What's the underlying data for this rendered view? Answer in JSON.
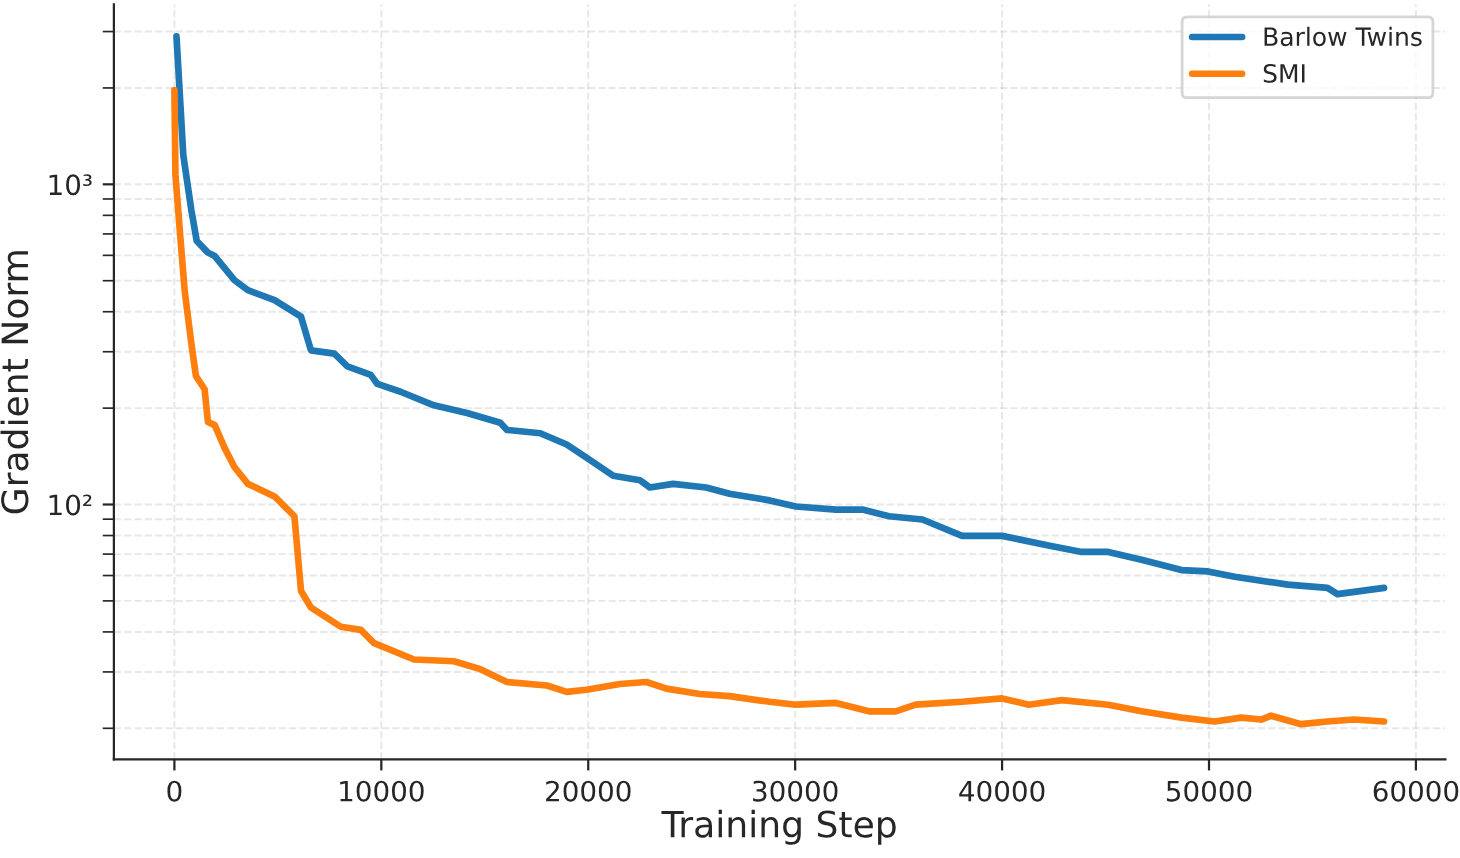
{
  "chart_data": {
    "type": "line",
    "xlabel": "Training Step",
    "ylabel": "Gradient Norm",
    "log": "y",
    "grid": true,
    "legend": "top right",
    "line_style": "solid",
    "xlim": [
      -2925,
      61425
    ],
    "ylim": [
      16,
      3650
    ],
    "xticks": [
      0,
      10000,
      20000,
      30000,
      40000,
      50000,
      60000
    ],
    "yticks": [
      {
        "value": 100,
        "label": "10²"
      },
      {
        "value": 1000,
        "label": "10³"
      }
    ],
    "series": [
      {
        "name": "Barlow Twins",
        "color": "#1f77b4",
        "x": [
          100,
          430,
          820,
          1080,
          1620,
          1950,
          2900,
          3550,
          4840,
          6120,
          6600,
          7730,
          8360,
          9490,
          9810,
          10930,
          12540,
          14140,
          15750,
          16070,
          17680,
          18960,
          19920,
          21210,
          22500,
          22980,
          24100,
          25700,
          26830,
          28760,
          30040,
          31970,
          33250,
          34540,
          36150,
          38070,
          40000,
          42240,
          43850,
          45130,
          46740,
          48670,
          49950,
          51240,
          53810,
          55730,
          56210,
          58460
        ],
        "values": [
          2900,
          1233,
          830,
          665,
          612,
          597,
          502,
          467,
          435,
          386,
          303,
          296,
          270,
          254,
          238,
          225,
          204,
          193,
          180,
          171,
          167,
          154,
          140,
          123,
          119,
          113,
          116,
          113,
          108,
          103,
          98.6,
          96.4,
          96.4,
          91.9,
          89.8,
          79.8,
          79.8,
          74.5,
          71.1,
          71.1,
          67.2,
          62.4,
          61.8,
          59.5,
          56.2,
          54.9,
          52.5,
          54.9
        ]
      },
      {
        "name": "SMI",
        "color": "#ff7f0e",
        "x": [
          0,
          50,
          270,
          500,
          820,
          1040,
          1460,
          1620,
          1950,
          2430,
          2900,
          3550,
          4840,
          5800,
          6120,
          6600,
          8040,
          9010,
          9650,
          11580,
          13510,
          14790,
          16070,
          18000,
          18960,
          19920,
          21530,
          22810,
          23780,
          25390,
          26830,
          28760,
          30040,
          31970,
          33570,
          34860,
          35820,
          38070,
          40000,
          41290,
          42890,
          45130,
          46740,
          48670,
          50270,
          51560,
          52520,
          53000,
          54450,
          55730,
          57010,
          58460
        ],
        "values": [
          1970,
          1072,
          705,
          463,
          318,
          252,
          229,
          181,
          177,
          150,
          131,
          116,
          106,
          91.9,
          53.7,
          47.7,
          41.5,
          40.6,
          36.9,
          32.8,
          32.4,
          30.6,
          27.9,
          27.2,
          26.0,
          26.4,
          27.5,
          27.9,
          26.6,
          25.6,
          25.2,
          24.2,
          23.7,
          24.0,
          22.6,
          22.6,
          23.7,
          24.2,
          24.8,
          23.7,
          24.5,
          23.7,
          22.6,
          21.6,
          21.0,
          21.6,
          21.3,
          21.9,
          20.6,
          21.0,
          21.3,
          21.0
        ]
      }
    ]
  }
}
